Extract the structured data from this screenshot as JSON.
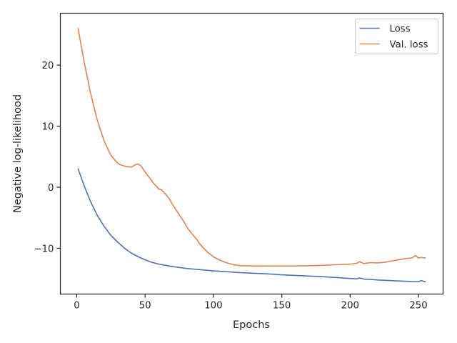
{
  "chart_data": {
    "type": "line",
    "xlabel": "Epochs",
    "ylabel": "Negative log-likelihood",
    "xlim": [
      -12,
      268
    ],
    "ylim": [
      -17.5,
      28.5
    ],
    "xticks": [
      0,
      50,
      100,
      150,
      200,
      250
    ],
    "yticks": [
      -10,
      0,
      10,
      20
    ],
    "xtick_labels": [
      "0",
      "50",
      "100",
      "150",
      "200",
      "250"
    ],
    "ytick_labels": [
      "−10",
      "0",
      "10",
      "20"
    ],
    "grid": false,
    "legend_position": "top-right",
    "series": [
      {
        "name": "Loss",
        "color": "#4c72b0",
        "x": [
          1,
          5,
          10,
          15,
          20,
          25,
          30,
          35,
          40,
          45,
          50,
          55,
          60,
          65,
          70,
          80,
          90,
          100,
          110,
          120,
          130,
          140,
          150,
          160,
          170,
          180,
          190,
          200,
          205,
          207,
          210,
          215,
          220,
          230,
          240,
          245,
          250,
          252,
          255
        ],
        "y": [
          3,
          0.5,
          -2.3,
          -4.6,
          -6.4,
          -7.9,
          -9.0,
          -10.0,
          -10.8,
          -11.4,
          -11.9,
          -12.3,
          -12.6,
          -12.8,
          -13.0,
          -13.3,
          -13.5,
          -13.7,
          -13.85,
          -14.0,
          -14.1,
          -14.2,
          -14.35,
          -14.45,
          -14.55,
          -14.65,
          -14.8,
          -14.95,
          -15.0,
          -14.85,
          -15.05,
          -15.1,
          -15.2,
          -15.3,
          -15.4,
          -15.45,
          -15.45,
          -15.3,
          -15.5
        ]
      },
      {
        "name": "Val. loss",
        "color": "#dd8452",
        "x": [
          1,
          5,
          10,
          15,
          20,
          25,
          30,
          33,
          36,
          40,
          43,
          45,
          47,
          50,
          53,
          56,
          58,
          60,
          62,
          64,
          66,
          68,
          70,
          72,
          75,
          78,
          80,
          82,
          85,
          88,
          90,
          95,
          100,
          105,
          110,
          115,
          120,
          130,
          140,
          150,
          160,
          170,
          180,
          190,
          200,
          205,
          207,
          210,
          215,
          220,
          225,
          230,
          235,
          240,
          245,
          248,
          250,
          252,
          255
        ],
        "y": [
          26,
          21,
          15.5,
          11,
          7.6,
          5.2,
          3.9,
          3.6,
          3.4,
          3.3,
          3.7,
          3.8,
          3.5,
          2.5,
          1.6,
          0.7,
          0.2,
          -0.3,
          -0.4,
          -0.9,
          -1.4,
          -2.0,
          -2.8,
          -3.5,
          -4.5,
          -5.5,
          -6.3,
          -7.0,
          -7.8,
          -8.6,
          -9.3,
          -10.5,
          -11.4,
          -12.0,
          -12.4,
          -12.7,
          -12.85,
          -12.9,
          -12.9,
          -12.9,
          -12.9,
          -12.85,
          -12.8,
          -12.7,
          -12.6,
          -12.45,
          -12.2,
          -12.5,
          -12.35,
          -12.4,
          -12.3,
          -12.1,
          -11.9,
          -11.7,
          -11.6,
          -11.2,
          -11.6,
          -11.5,
          -11.6
        ]
      }
    ]
  }
}
